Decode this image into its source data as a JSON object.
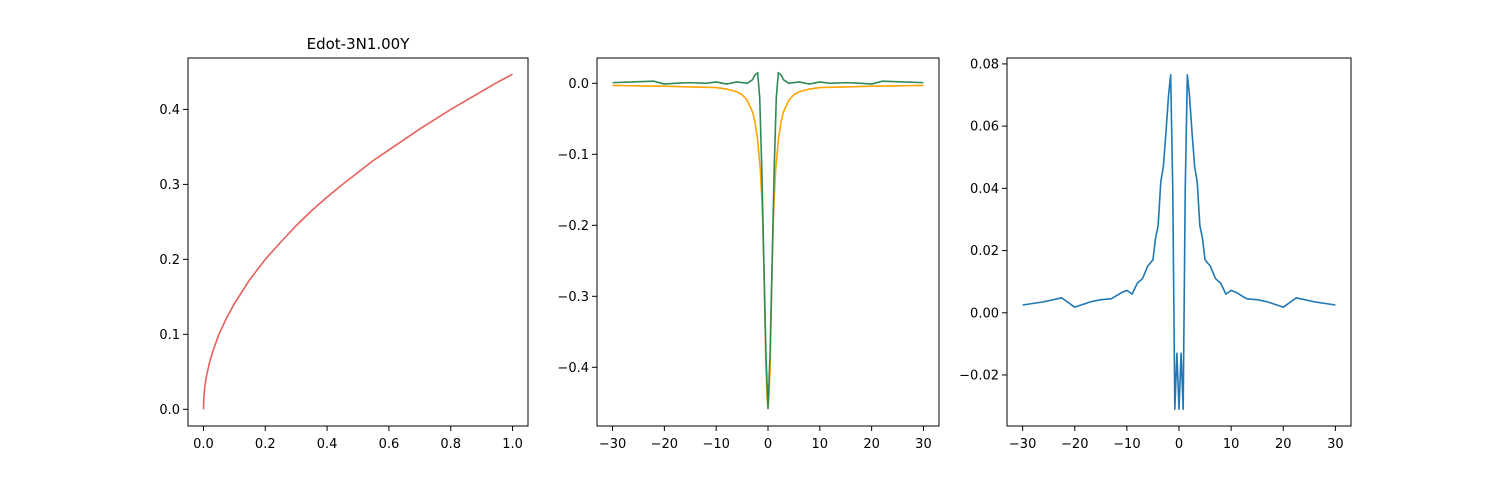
{
  "chart_data": [
    {
      "type": "line",
      "title": "Edot-3N1.00Y",
      "xlabel": "",
      "ylabel": "",
      "xlim": [
        -0.05,
        1.05
      ],
      "ylim": [
        -0.0223,
        0.4686
      ],
      "xticks": [
        0.0,
        0.2,
        0.4,
        0.6,
        0.8,
        1.0
      ],
      "yticks": [
        0.0,
        0.1,
        0.2,
        0.3,
        0.4
      ],
      "xtick_labels": [
        "0.0",
        "0.2",
        "0.4",
        "0.6",
        "0.8",
        "1.0"
      ],
      "ytick_labels": [
        "0.0",
        "0.1",
        "0.2",
        "0.3",
        "0.4"
      ],
      "grid": false,
      "series": [
        {
          "color": "#e8605c",
          "x": [
            0.0,
            0.002,
            0.005,
            0.01,
            0.02,
            0.03,
            0.05,
            0.075,
            0.1,
            0.15,
            0.2,
            0.25,
            0.3,
            0.35,
            0.4,
            0.45,
            0.5,
            0.55,
            0.6,
            0.65,
            0.7,
            0.75,
            0.8,
            0.85,
            0.9,
            0.95,
            1.0
          ],
          "y": [
            0.0,
            0.02,
            0.032,
            0.045,
            0.063,
            0.077,
            0.1,
            0.122,
            0.141,
            0.173,
            0.2,
            0.223,
            0.245,
            0.265,
            0.283,
            0.3,
            0.316,
            0.332,
            0.346,
            0.36,
            0.374,
            0.387,
            0.4,
            0.412,
            0.424,
            0.436,
            0.447
          ]
        }
      ]
    },
    {
      "type": "line",
      "title": "",
      "xlabel": "",
      "ylabel": "",
      "xlim": [
        -33,
        33
      ],
      "ylim": [
        -0.4827,
        0.0357
      ],
      "xticks": [
        -30,
        -20,
        -10,
        0,
        10,
        20,
        30
      ],
      "yticks": [
        0.0,
        -0.1,
        -0.2,
        -0.3,
        -0.4
      ],
      "xtick_labels": [
        "−30",
        "−20",
        "−10",
        "0",
        "10",
        "20",
        "30"
      ],
      "ytick_labels": [
        "0.0",
        "−0.1",
        "−0.2",
        "−0.3",
        "−0.4"
      ],
      "grid": false,
      "series": [
        {
          "color": "#ffa500",
          "x": [
            -30,
            -20,
            -15,
            -10,
            -8,
            -6,
            -5,
            -4,
            -3,
            -2.5,
            -2,
            -1.5,
            -1.2,
            -1,
            -0.8,
            -0.6,
            -0.4,
            -0.2,
            0,
            0.2,
            0.4,
            0.6,
            0.8,
            1,
            1.2,
            1.5,
            2,
            2.5,
            3,
            4,
            5,
            6,
            8,
            10,
            15,
            20,
            30
          ],
          "y": [
            -0.003,
            -0.004,
            -0.005,
            -0.006,
            -0.008,
            -0.012,
            -0.016,
            -0.024,
            -0.04,
            -0.055,
            -0.08,
            -0.12,
            -0.16,
            -0.2,
            -0.26,
            -0.33,
            -0.4,
            -0.44,
            -0.458,
            -0.44,
            -0.4,
            -0.33,
            -0.26,
            -0.2,
            -0.16,
            -0.12,
            -0.08,
            -0.055,
            -0.04,
            -0.024,
            -0.016,
            -0.012,
            -0.008,
            -0.006,
            -0.005,
            -0.004,
            -0.003
          ]
        },
        {
          "color": "#2e8b57",
          "x": [
            -30,
            -26,
            -22,
            -20,
            -18,
            -15,
            -12,
            -10,
            -8,
            -6,
            -4,
            -3,
            -2.5,
            -2,
            -1.6,
            -1.2,
            -0.8,
            -0.4,
            0,
            0.4,
            0.8,
            1.2,
            1.6,
            2,
            2.5,
            3,
            4,
            6,
            8,
            10,
            12,
            15,
            18,
            20,
            22,
            26,
            30
          ],
          "y": [
            0.001,
            0.002,
            0.003,
            -0.001,
            0.0,
            0.001,
            0.0,
            0.002,
            -0.001,
            0.002,
            0.0,
            0.005,
            0.012,
            0.015,
            -0.02,
            -0.12,
            -0.25,
            -0.38,
            -0.458,
            -0.38,
            -0.25,
            -0.12,
            -0.02,
            0.015,
            0.012,
            0.005,
            0.0,
            0.002,
            -0.001,
            0.002,
            0.0,
            0.001,
            0.0,
            -0.001,
            0.003,
            0.002,
            0.001
          ]
        }
      ]
    },
    {
      "type": "line",
      "title": "",
      "xlabel": "",
      "ylabel": "",
      "xlim": [
        -33,
        33
      ],
      "ylim": [
        -0.0364,
        0.0819
      ],
      "xticks": [
        -30,
        -20,
        -10,
        0,
        10,
        20,
        30
      ],
      "yticks": [
        -0.02,
        0.0,
        0.02,
        0.04,
        0.06,
        0.08
      ],
      "xtick_labels": [
        "−30",
        "−20",
        "−10",
        "0",
        "10",
        "20",
        "30"
      ],
      "ytick_labels": [
        "−0.02",
        "0.00",
        "0.02",
        "0.04",
        "0.06",
        "0.08"
      ],
      "grid": false,
      "series": [
        {
          "color": "#1f77b4",
          "x": [
            -30,
            -26,
            -22.5,
            -20,
            -17,
            -15,
            -13,
            -11,
            -10,
            -9,
            -8,
            -7,
            -6,
            -5,
            -4.5,
            -4,
            -3.5,
            -3,
            -2.5,
            -2,
            -1.6,
            -1.2,
            -0.8,
            -0.4,
            0,
            0.4,
            0.8,
            1.2,
            1.6,
            2,
            2.5,
            3,
            3.5,
            4,
            4.5,
            5,
            6,
            7,
            8,
            9,
            10,
            11,
            13,
            15,
            17,
            20,
            22.5,
            26,
            30
          ],
          "y": [
            0.0025,
            0.0035,
            0.0048,
            0.0018,
            0.0035,
            0.0042,
            0.0045,
            0.0065,
            0.0072,
            0.006,
            0.0095,
            0.011,
            0.015,
            0.017,
            0.024,
            0.028,
            0.042,
            0.047,
            0.058,
            0.07,
            0.0765,
            0.04,
            -0.031,
            -0.013,
            -0.031,
            -0.013,
            -0.031,
            0.04,
            0.0765,
            0.07,
            0.058,
            0.047,
            0.042,
            0.028,
            0.024,
            0.017,
            0.015,
            0.011,
            0.0095,
            0.006,
            0.0072,
            0.0065,
            0.0045,
            0.0042,
            0.0035,
            0.0018,
            0.0048,
            0.0035,
            0.0025
          ]
        }
      ]
    }
  ]
}
